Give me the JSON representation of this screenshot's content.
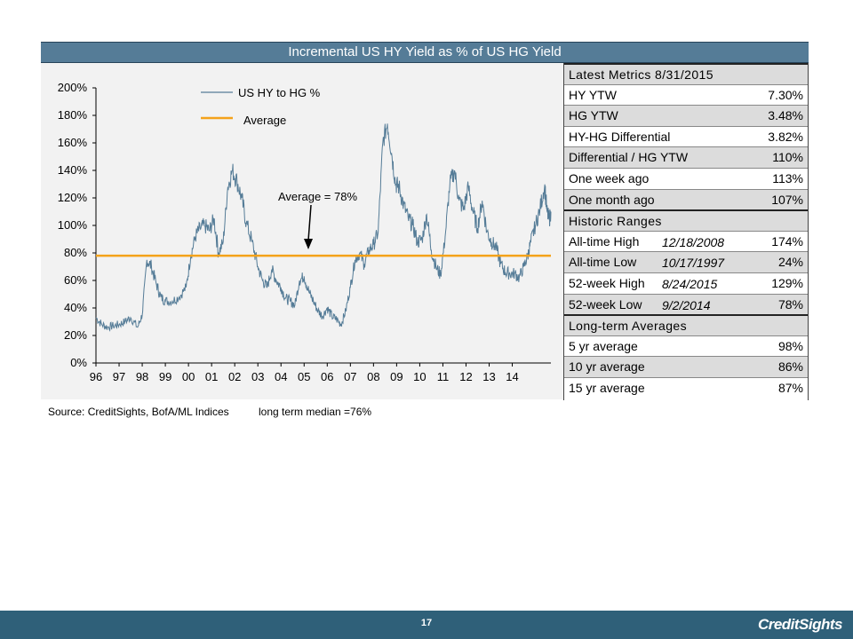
{
  "title": "Incremental US HY Yield as % of US HG Yield",
  "source": "Source: CreditSights, BofA/ML Indices",
  "median_note": "long term median =76%",
  "page_number": "17",
  "brand": "CreditSights",
  "colors": {
    "header": "#557c97",
    "footer": "#2f6079",
    "series": "#557c97",
    "average": "#f4a21a"
  },
  "metrics": {
    "latest_header": "Latest Metrics 8/31/2015",
    "latest": [
      {
        "label": "HY YTW",
        "value": "7.30%"
      },
      {
        "label": "HG YTW",
        "value": "3.48%"
      },
      {
        "label": "HY-HG Differential",
        "value": "3.82%"
      },
      {
        "label": "Differential / HG YTW",
        "value": "110%"
      },
      {
        "label": "One week ago",
        "value": "113%"
      },
      {
        "label": "One month ago",
        "value": "107%"
      }
    ],
    "historic_header": "Historic Ranges",
    "historic": [
      {
        "label": "All-time High",
        "date": "12/18/2008",
        "value": "174%"
      },
      {
        "label": "All-time Low",
        "date": "10/17/1997",
        "value": "24%"
      },
      {
        "label": "52-week High",
        "date": "8/24/2015",
        "value": "129%"
      },
      {
        "label": "52-week Low",
        "date": "9/2/2014",
        "value": "78%"
      }
    ],
    "longterm_header": "Long-term Averages",
    "longterm": [
      {
        "label": "5 yr average",
        "value": "98%"
      },
      {
        "label": "10 yr average",
        "value": "86%"
      },
      {
        "label": "15 yr average",
        "value": "87%"
      }
    ]
  },
  "chart_data": {
    "type": "line",
    "title": "Incremental US HY Yield as % of US HG Yield",
    "xlabel": "",
    "ylabel": "",
    "x_ticks": [
      "96",
      "97",
      "98",
      "99",
      "00",
      "01",
      "02",
      "03",
      "04",
      "05",
      "06",
      "07",
      "08",
      "09",
      "10",
      "11",
      "12",
      "13",
      "14"
    ],
    "y_ticks": [
      "0%",
      "20%",
      "40%",
      "60%",
      "80%",
      "100%",
      "120%",
      "140%",
      "160%",
      "180%",
      "200%"
    ],
    "ylim": [
      0,
      200
    ],
    "xlim": [
      1996.0,
      2015.67
    ],
    "grid": false,
    "legend": {
      "placement": "top-center",
      "entries": [
        "US HY to HG %",
        "Average"
      ]
    },
    "annotation": "Average = 78%",
    "series": [
      {
        "name": "US HY to HG %",
        "x": [
          1996.0,
          1996.25,
          1996.5,
          1996.75,
          1997.0,
          1997.25,
          1997.5,
          1997.8,
          1998.0,
          1998.2,
          1998.4,
          1998.6,
          1998.8,
          1999.0,
          1999.3,
          1999.6,
          1999.9,
          2000.1,
          2000.3,
          2000.5,
          2000.7,
          2000.9,
          2001.1,
          2001.3,
          2001.5,
          2001.7,
          2001.9,
          2002.1,
          2002.3,
          2002.5,
          2002.75,
          2003.0,
          2003.2,
          2003.4,
          2003.6,
          2003.8,
          2004.0,
          2004.2,
          2004.4,
          2004.6,
          2004.8,
          2005.0,
          2005.2,
          2005.4,
          2005.6,
          2005.8,
          2006.0,
          2006.2,
          2006.4,
          2006.6,
          2006.8,
          2007.0,
          2007.2,
          2007.4,
          2007.6,
          2007.8,
          2008.0,
          2008.2,
          2008.4,
          2008.6,
          2008.8,
          2008.96,
          2009.1,
          2009.3,
          2009.5,
          2009.7,
          2009.9,
          2010.1,
          2010.3,
          2010.5,
          2010.7,
          2010.9,
          2011.1,
          2011.3,
          2011.5,
          2011.7,
          2011.9,
          2012.1,
          2012.3,
          2012.5,
          2012.7,
          2012.9,
          2013.1,
          2013.3,
          2013.5,
          2013.7,
          2013.9,
          2014.1,
          2014.3,
          2014.5,
          2014.67,
          2014.8,
          2015.0,
          2015.2,
          2015.4,
          2015.5,
          2015.6,
          2015.67
        ],
        "values": [
          33,
          28,
          26,
          27,
          28,
          30,
          33,
          26,
          35,
          75,
          70,
          58,
          48,
          45,
          45,
          48,
          55,
          78,
          92,
          98,
          100,
          96,
          105,
          80,
          88,
          128,
          140,
          132,
          120,
          102,
          88,
          70,
          60,
          55,
          68,
          60,
          55,
          47,
          45,
          42,
          60,
          63,
          52,
          45,
          38,
          34,
          40,
          34,
          32,
          28,
          38,
          55,
          75,
          80,
          72,
          82,
          86,
          95,
          160,
          174,
          150,
          130,
          128,
          115,
          105,
          100,
          88,
          90,
          108,
          82,
          70,
          64,
          92,
          130,
          140,
          118,
          112,
          128,
          110,
          98,
          118,
          96,
          88,
          84,
          72,
          66,
          65,
          65,
          62,
          70,
          78,
          88,
          100,
          112,
          129,
          110,
          104,
          110
        ]
      },
      {
        "name": "Average",
        "x": [
          1996.0,
          2015.67
        ],
        "values": [
          78,
          78
        ]
      }
    ]
  }
}
